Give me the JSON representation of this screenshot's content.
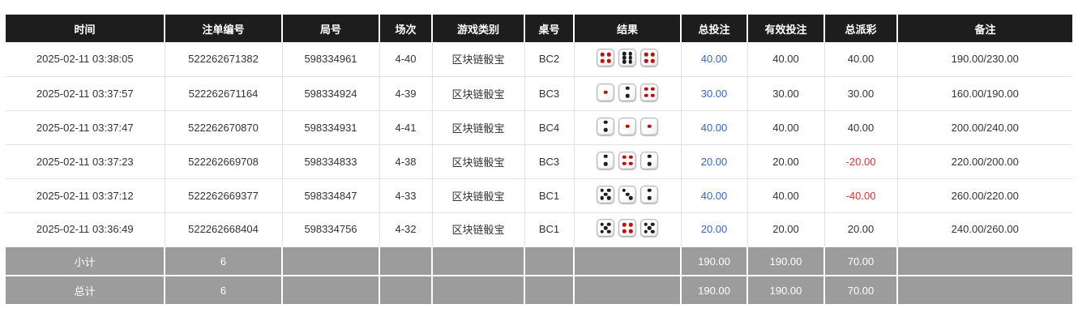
{
  "colors": {
    "header_bg": "#1d1d1d",
    "header_text": "#ffffff",
    "row_text": "#333333",
    "bet_link_blue": "#3366cc",
    "negative_red": "#e03333",
    "summary_bg": "#9c9c9c",
    "dice_pip_red": "#bb1111",
    "dice_pip_black": "#1e1e1e"
  },
  "table": {
    "columns": [
      {
        "key": "time",
        "label": "时间"
      },
      {
        "key": "bet_id",
        "label": "注单编号"
      },
      {
        "key": "round_no",
        "label": "局号"
      },
      {
        "key": "session",
        "label": "场次"
      },
      {
        "key": "game_type",
        "label": "游戏类别"
      },
      {
        "key": "table_no",
        "label": "桌号"
      },
      {
        "key": "result",
        "label": "结果"
      },
      {
        "key": "total_bet",
        "label": "总投注"
      },
      {
        "key": "valid_bet",
        "label": "有效投注"
      },
      {
        "key": "payout",
        "label": "总派彩"
      },
      {
        "key": "remark",
        "label": "备注"
      }
    ],
    "rows": [
      {
        "time": "2025-02-11 03:38:05",
        "bet_id": "522262671382",
        "round_no": "598334961",
        "session": "4-40",
        "game_type": "区块链骰宝",
        "table_no": "BC2",
        "dice": [
          4,
          6,
          4
        ],
        "total_bet": "40.00",
        "valid_bet": "40.00",
        "payout": "40.00",
        "remark": "190.00/230.00"
      },
      {
        "time": "2025-02-11 03:37:57",
        "bet_id": "522262671164",
        "round_no": "598334924",
        "session": "4-39",
        "game_type": "区块链骰宝",
        "table_no": "BC3",
        "dice": [
          1,
          2,
          4
        ],
        "total_bet": "30.00",
        "valid_bet": "30.00",
        "payout": "30.00",
        "remark": "160.00/190.00"
      },
      {
        "time": "2025-02-11 03:37:47",
        "bet_id": "522262670870",
        "round_no": "598334931",
        "session": "4-41",
        "game_type": "区块链骰宝",
        "table_no": "BC4",
        "dice": [
          2,
          1,
          1
        ],
        "total_bet": "40.00",
        "valid_bet": "40.00",
        "payout": "40.00",
        "remark": "200.00/240.00"
      },
      {
        "time": "2025-02-11 03:37:23",
        "bet_id": "522262669708",
        "round_no": "598334833",
        "session": "4-38",
        "game_type": "区块链骰宝",
        "table_no": "BC3",
        "dice": [
          2,
          4,
          2
        ],
        "total_bet": "20.00",
        "valid_bet": "20.00",
        "payout": "-20.00",
        "remark": "220.00/200.00"
      },
      {
        "time": "2025-02-11 03:37:12",
        "bet_id": "522262669377",
        "round_no": "598334847",
        "session": "4-33",
        "game_type": "区块链骰宝",
        "table_no": "BC1",
        "dice": [
          5,
          3,
          2
        ],
        "total_bet": "40.00",
        "valid_bet": "40.00",
        "payout": "-40.00",
        "remark": "260.00/220.00"
      },
      {
        "time": "2025-02-11 03:36:49",
        "bet_id": "522262668404",
        "round_no": "598334756",
        "session": "4-32",
        "game_type": "区块链骰宝",
        "table_no": "BC1",
        "dice": [
          5,
          4,
          5
        ],
        "total_bet": "20.00",
        "valid_bet": "20.00",
        "payout": "20.00",
        "remark": "240.00/260.00"
      }
    ],
    "summary_rows": [
      {
        "key": "subtotal",
        "label": "小计",
        "count": "6",
        "total_bet": "190.00",
        "valid_bet": "190.00",
        "payout": "70.00"
      },
      {
        "key": "total",
        "label": "总计",
        "count": "6",
        "total_bet": "190.00",
        "valid_bet": "190.00",
        "payout": "70.00"
      }
    ]
  }
}
